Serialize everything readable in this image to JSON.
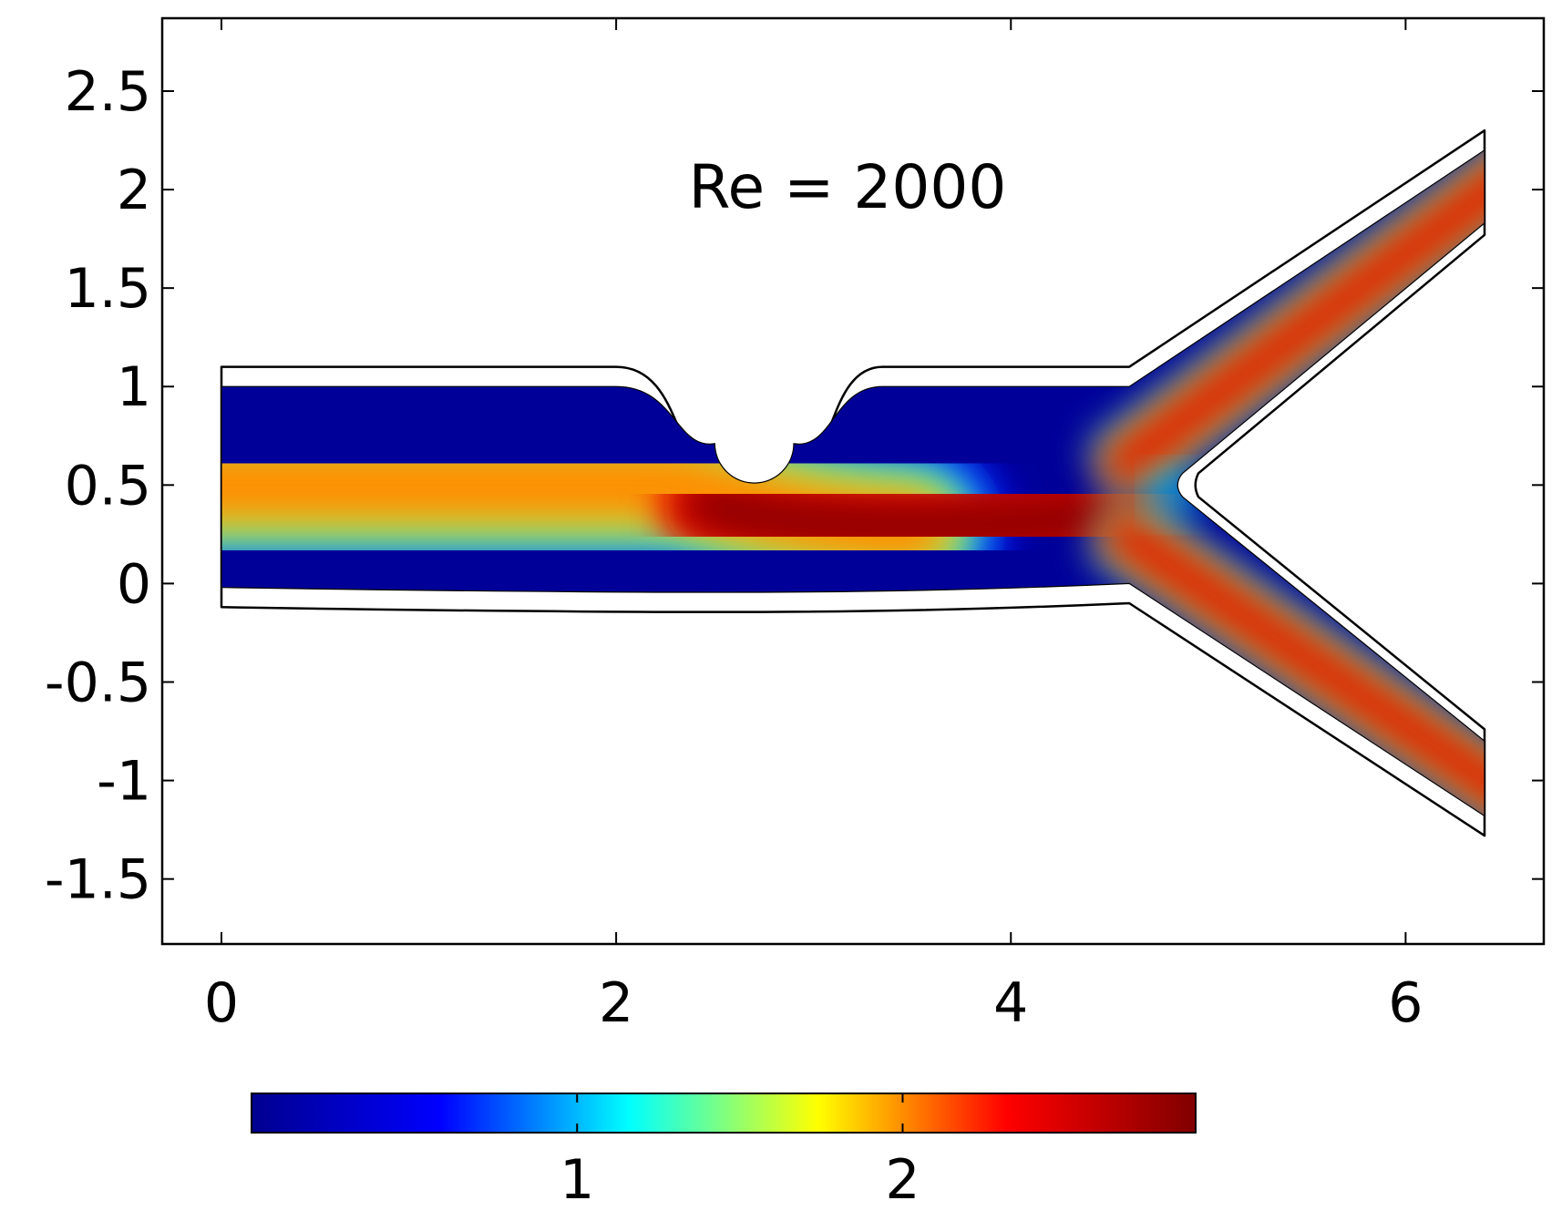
{
  "chart_data": {
    "type": "heatmap",
    "title": "",
    "xlabel": "",
    "ylabel": "",
    "xlim": [
      -0.3,
      6.7
    ],
    "ylim": [
      -1.83,
      2.87
    ],
    "x_ticks": [
      0,
      2,
      4,
      6
    ],
    "x_tick_labels": [
      "0",
      "2",
      "4",
      "6"
    ],
    "y_ticks": [
      2.5,
      2,
      1.5,
      1,
      0.5,
      0,
      -0.5,
      -1,
      -1.5
    ],
    "y_tick_labels": [
      "2.5",
      "2",
      "1.5",
      "1",
      "0.5",
      "0",
      "-0.5",
      "-1",
      "-1.5"
    ],
    "annotation": "Re = 2000",
    "colormap": "jet",
    "colorbar": {
      "orientation": "horizontal",
      "range": [
        0,
        2.9
      ],
      "ticks": [
        1,
        2
      ],
      "tick_labels": [
        "1",
        "2"
      ],
      "stops": [
        "#00008f",
        "#0000ff",
        "#00ffff",
        "#ffff00",
        "#ff0000",
        "#800000"
      ]
    },
    "geometry": {
      "inlet_channel": {
        "x": [
          0,
          4.6
        ],
        "y": [
          0,
          1
        ],
        "wall_offset": 0.1
      },
      "stenosis": {
        "center": [
          2.7,
          0.72
        ],
        "radius": 0.2,
        "x_range": [
          2.0,
          3.35
        ]
      },
      "bifurcation_apex": [
        4.87,
        0.5
      ],
      "upper_branch": {
        "outlet_x": 6.4,
        "outlet_y": [
          1.83,
          2.2
        ]
      },
      "lower_branch": {
        "outlet_x": 6.4,
        "outlet_y": [
          -1.18,
          -0.8
        ]
      }
    },
    "field_samples": [
      {
        "region": "inlet core",
        "x": 0.5,
        "y": 0.5,
        "value": 2.0
      },
      {
        "region": "inlet wall",
        "x": 0.5,
        "y": 0.95,
        "value": 0.2
      },
      {
        "region": "post-stenosis jet",
        "x": 3.3,
        "y": 0.25,
        "value": 2.9
      },
      {
        "region": "recirculation zone",
        "x": 3.8,
        "y": 0.85,
        "value": 0.05
      },
      {
        "region": "bifurcation apex",
        "x": 4.8,
        "y": 0.45,
        "value": 1.1
      },
      {
        "region": "upper branch core",
        "x": 6.2,
        "y": 2.0,
        "value": 2.5
      },
      {
        "region": "lower branch core",
        "x": 6.2,
        "y": -1.0,
        "value": 2.5
      }
    ]
  }
}
